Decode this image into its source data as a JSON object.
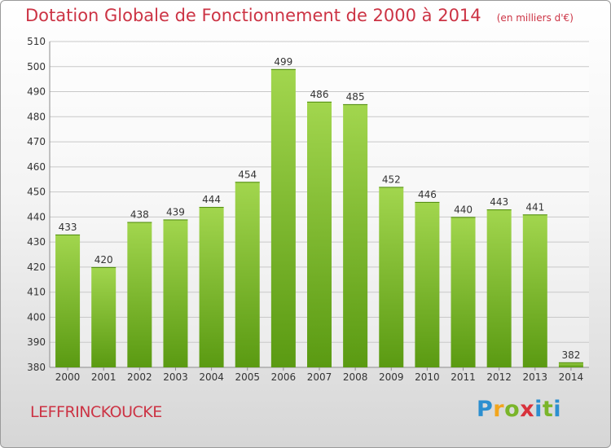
{
  "chart_data": {
    "type": "bar",
    "title": "Dotation Globale de Fonctionnement de 2000 à 2014",
    "unit_note": "(en milliers d'€)",
    "categories": [
      "2000",
      "2001",
      "2002",
      "2003",
      "2004",
      "2005",
      "2006",
      "2007",
      "2008",
      "2009",
      "2010",
      "2011",
      "2012",
      "2013",
      "2014"
    ],
    "values": [
      433,
      420,
      438,
      439,
      444,
      454,
      499,
      486,
      485,
      452,
      446,
      440,
      443,
      441,
      382
    ],
    "ylim": [
      380,
      510
    ],
    "yticks": [
      380,
      390,
      400,
      410,
      420,
      430,
      440,
      450,
      460,
      470,
      480,
      490,
      500,
      510
    ],
    "grid": true,
    "colors": {
      "bar_top": "#a2d64e",
      "bar_bottom": "#5a9a12",
      "title": "#cc3344"
    }
  },
  "commune": "LEFFRINCKOUCKE",
  "logo": {
    "letters": [
      "P",
      "r",
      "o",
      "x",
      "i",
      "t",
      "i"
    ],
    "colors": [
      "#2c8fd0",
      "#f2a51d",
      "#7ab52a",
      "#d8323c",
      "#2c8fd0",
      "#7ab52a",
      "#2c8fd0"
    ]
  }
}
